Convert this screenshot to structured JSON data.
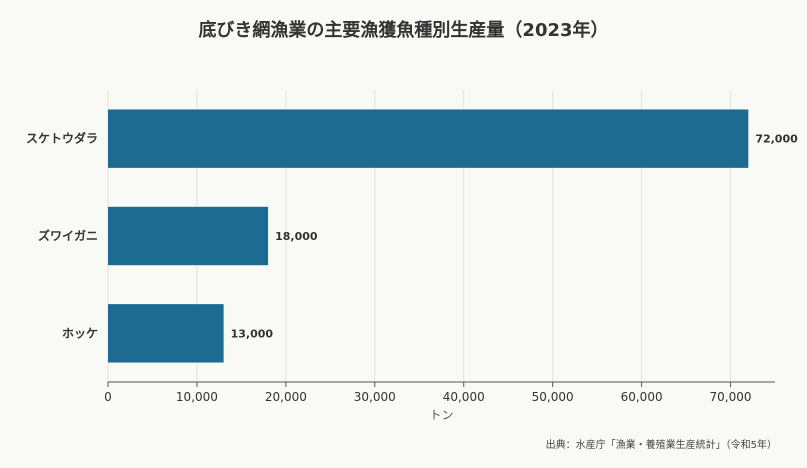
{
  "chart_data": {
    "type": "bar",
    "orientation": "horizontal",
    "title": "底びき網漁業の主要漁獲魚種別生産量（2023年）",
    "categories": [
      "スケトウダラ",
      "ズワイガニ",
      "ホッケ"
    ],
    "values": [
      72000,
      18000,
      13000
    ],
    "value_labels": [
      "72,000",
      "18,000",
      "13,000"
    ],
    "xlabel": "トン",
    "ylabel": "",
    "xlim": [
      0,
      75000
    ],
    "xticks": [
      0,
      10000,
      20000,
      30000,
      40000,
      50000,
      60000,
      70000
    ],
    "xtick_labels": [
      "0",
      "10,000",
      "20,000",
      "30,000",
      "40,000",
      "50,000",
      "60,000",
      "70,000"
    ],
    "grid": true,
    "bar_color": "#1d6b91"
  },
  "source_note": "出典：水産庁「漁業・養殖業生産統計」（令和5年）"
}
